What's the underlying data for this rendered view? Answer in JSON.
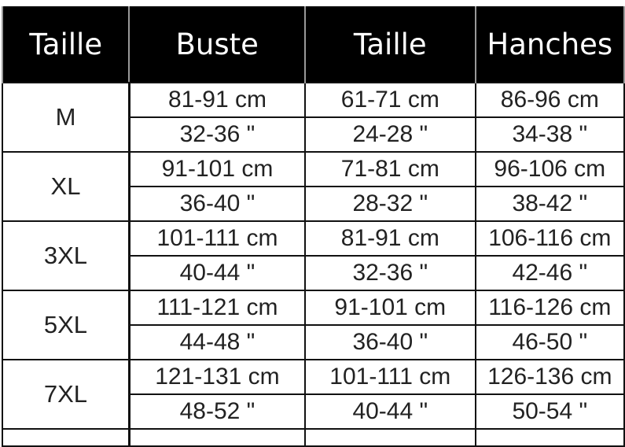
{
  "headers": [
    "Taille",
    "Buste",
    "Taille",
    "Hanches"
  ],
  "rows": [
    {
      "size": "M",
      "cm": [
        "81-91 cm",
        "61-71 cm",
        "86-96 cm"
      ],
      "inch": [
        "32-36 \"",
        "24-28 \"",
        "34-38 \""
      ]
    },
    {
      "size": "XL",
      "cm": [
        "91-101 cm",
        "71-81 cm",
        "96-106 cm"
      ],
      "inch": [
        "36-40 \"",
        "28-32 \"",
        "38-42 \""
      ]
    },
    {
      "size": "3XL",
      "cm": [
        "101-111 cm",
        "81-91 cm",
        "106-116 cm"
      ],
      "inch": [
        "40-44 \"",
        "32-36 \"",
        "42-46 \""
      ]
    },
    {
      "size": "5XL",
      "cm": [
        "111-121 cm",
        "91-101 cm",
        "116-126 cm"
      ],
      "inch": [
        "44-48 \"",
        "36-40 \"",
        "46-50 \""
      ]
    },
    {
      "size": "7XL",
      "cm": [
        "121-131 cm",
        "101-111 cm",
        "126-136 cm"
      ],
      "inch": [
        "48-52 \"",
        "40-44 \"",
        "50-54 \""
      ]
    }
  ]
}
